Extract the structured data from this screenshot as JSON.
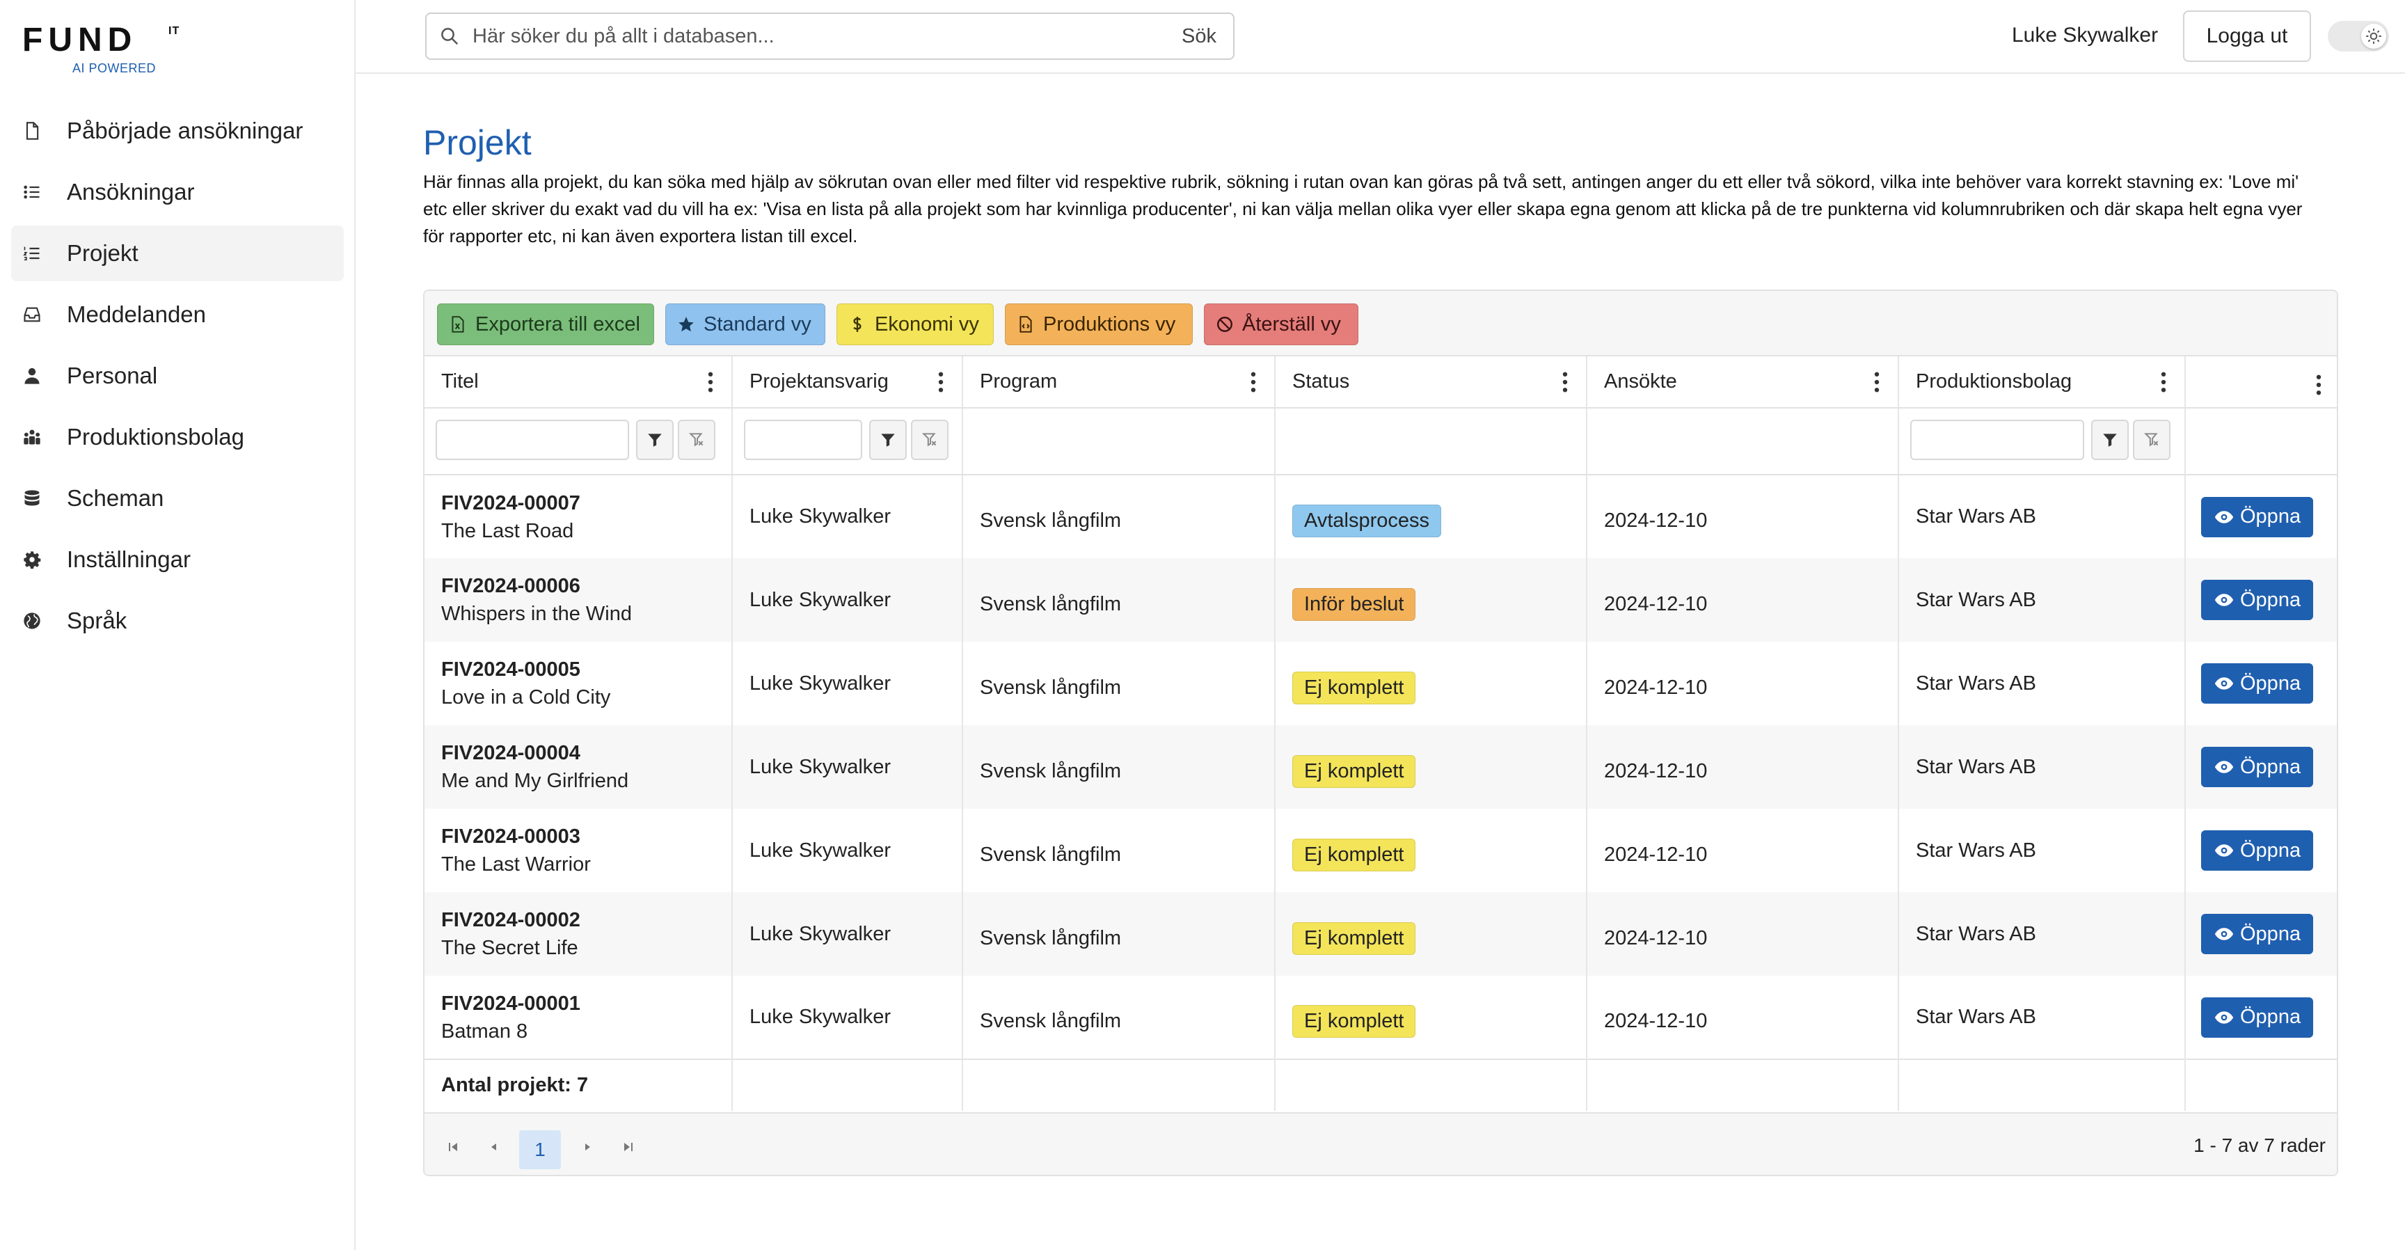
{
  "brand": {
    "logo": "FUND",
    "logo_sup": "IT",
    "tagline": "AI POWERED"
  },
  "sidebar": {
    "items": [
      {
        "label": "Påbörjade ansökningar",
        "icon": "file-icon",
        "active": false
      },
      {
        "label": "Ansökningar",
        "icon": "list-icon",
        "active": false
      },
      {
        "label": "Projekt",
        "icon": "numbered-list-icon",
        "active": true
      },
      {
        "label": "Meddelanden",
        "icon": "inbox-icon",
        "active": false
      },
      {
        "label": "Personal",
        "icon": "person-icon",
        "active": false
      },
      {
        "label": "Produktionsbolag",
        "icon": "people-group-icon",
        "active": false
      },
      {
        "label": "Scheman",
        "icon": "database-icon",
        "active": false
      },
      {
        "label": "Inställningar",
        "icon": "gear-icon",
        "active": false
      },
      {
        "label": "Språk",
        "icon": "globe-icon",
        "active": false
      }
    ]
  },
  "header": {
    "search_placeholder": "Här söker du på allt i databasen...",
    "search_button": "Sök",
    "user_name": "Luke Skywalker",
    "logout_label": "Logga ut"
  },
  "main": {
    "title": "Projekt",
    "description": "Här finnas alla projekt, du kan söka med hjälp av sökrutan ovan eller med filter vid respektive rubrik, sökning i rutan ovan kan göras på två sett, antingen anger du ett eller två sökord, vilka inte behöver vara korrekt stavning ex: 'Love mi' etc eller skriver du exakt vad du vill ha ex: 'Visa en lista på alla projekt som har kvinnliga producenter', ni kan välja mellan olika vyer eller skapa egna genom att klicka på de tre punkterna vid kolumnrubriken och där skapa helt egna vyer för rapporter etc, ni kan även exportera listan till excel."
  },
  "toolbar": {
    "export_label": "Exportera till excel",
    "standard_label": "Standard vy",
    "economy_label": "Ekonomi vy",
    "production_label": "Produktions vy",
    "reset_label": "Återställ vy"
  },
  "table": {
    "columns": [
      "Titel",
      "Projektansvarig",
      "Program",
      "Status",
      "Ansökte",
      "Produktionsbolag"
    ],
    "open_label": "Öppna",
    "rows": [
      {
        "id": "FIV2024-00007",
        "title": "The Last Road",
        "manager": "Luke Skywalker",
        "program": "Svensk långfilm",
        "status": "Avtalsprocess",
        "applied": "2024-12-10",
        "company": "Star Wars AB"
      },
      {
        "id": "FIV2024-00006",
        "title": "Whispers in the Wind",
        "manager": "Luke Skywalker",
        "program": "Svensk långfilm",
        "status": "Inför beslut",
        "applied": "2024-12-10",
        "company": "Star Wars AB"
      },
      {
        "id": "FIV2024-00005",
        "title": "Love in a Cold City",
        "manager": "Luke Skywalker",
        "program": "Svensk långfilm",
        "status": "Ej komplett",
        "applied": "2024-12-10",
        "company": "Star Wars AB"
      },
      {
        "id": "FIV2024-00004",
        "title": "Me and My Girlfriend",
        "manager": "Luke Skywalker",
        "program": "Svensk långfilm",
        "status": "Ej komplett",
        "applied": "2024-12-10",
        "company": "Star Wars AB"
      },
      {
        "id": "FIV2024-00003",
        "title": "The Last Warrior",
        "manager": "Luke Skywalker",
        "program": "Svensk långfilm",
        "status": "Ej komplett",
        "applied": "2024-12-10",
        "company": "Star Wars AB"
      },
      {
        "id": "FIV2024-00002",
        "title": "The Secret Life",
        "manager": "Luke Skywalker",
        "program": "Svensk långfilm",
        "status": "Ej komplett",
        "applied": "2024-12-10",
        "company": "Star Wars AB"
      },
      {
        "id": "FIV2024-00001",
        "title": "Batman 8",
        "manager": "Luke Skywalker",
        "program": "Svensk långfilm",
        "status": "Ej komplett",
        "applied": "2024-12-10",
        "company": "Star Wars AB"
      }
    ],
    "footer_count": "Antal projekt: 7"
  },
  "pager": {
    "current_page": "1",
    "info": "1 - 7 av 7 rader"
  },
  "colors": {
    "accent": "#1f5fb0",
    "status_avtalsprocess": "#8fc8ee",
    "status_infor_beslut": "#f3b25a",
    "status_ej_komplett": "#f3e45a"
  }
}
